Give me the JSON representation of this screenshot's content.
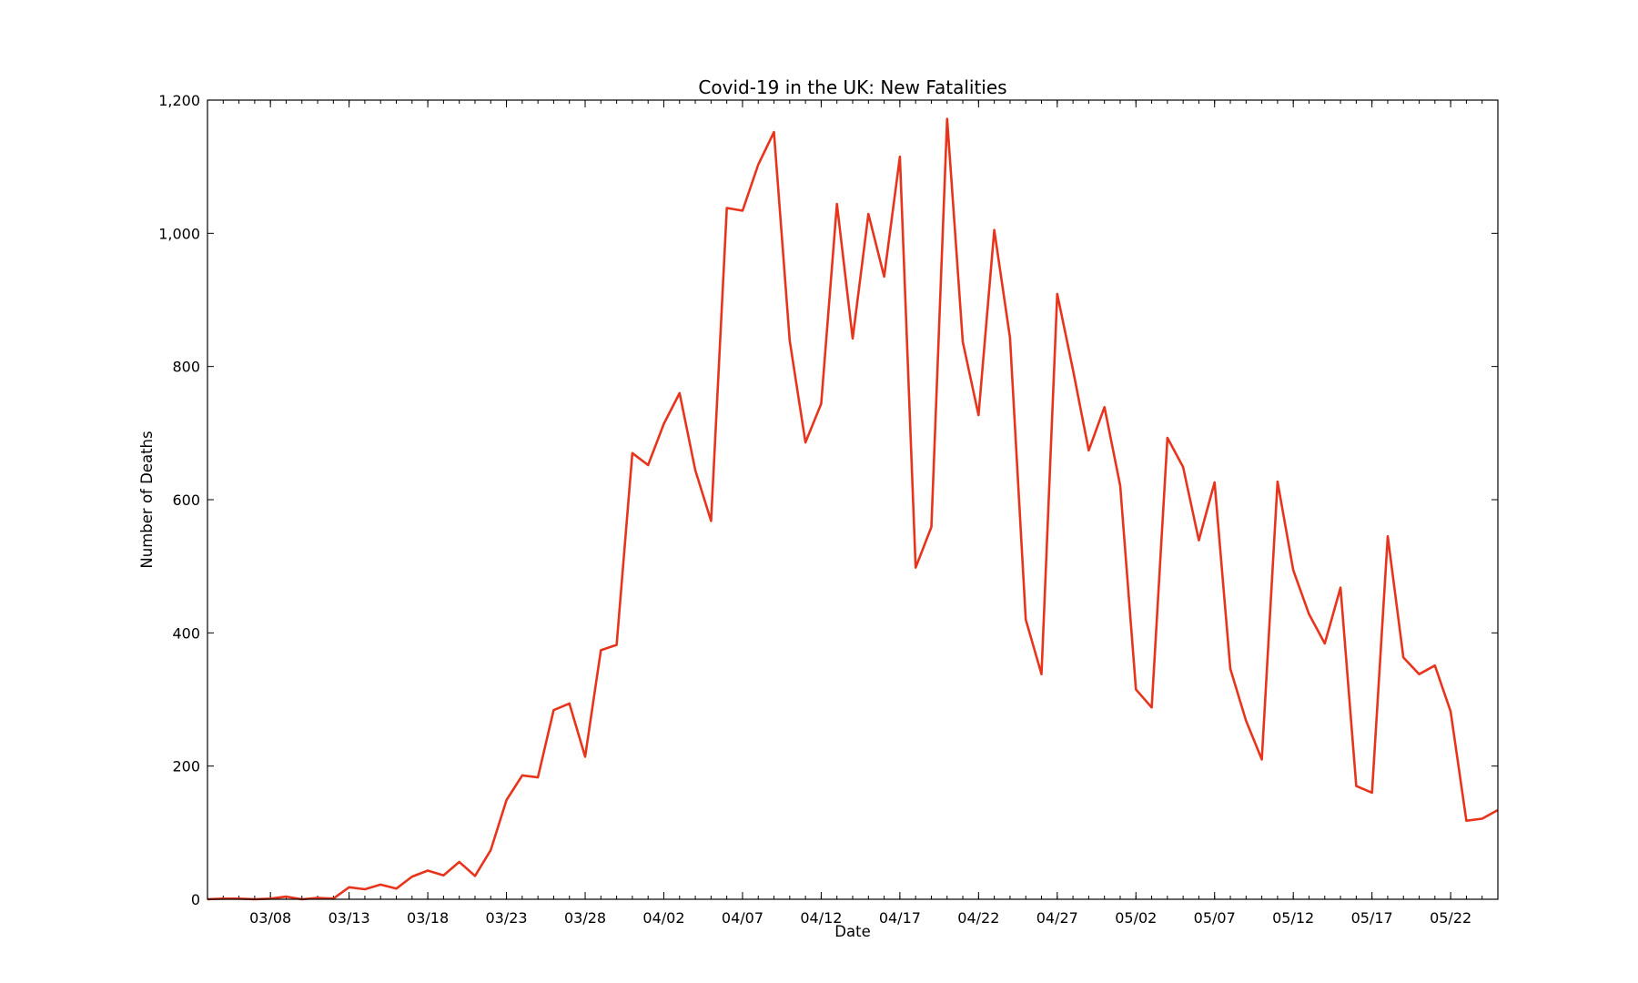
{
  "chart_data": {
    "type": "line",
    "title": "Covid-19 in the UK: New Fatalities",
    "xlabel": "Date",
    "ylabel": "Number of Deaths",
    "ylim": [
      0,
      1200
    ],
    "xlim": [
      "2020-03-04",
      "2020-05-25"
    ],
    "grid": false,
    "legend": "none",
    "yticks": [
      {
        "value": 0,
        "label": "0"
      },
      {
        "value": 200,
        "label": "200"
      },
      {
        "value": 400,
        "label": "400"
      },
      {
        "value": 600,
        "label": "600"
      },
      {
        "value": 800,
        "label": "800"
      },
      {
        "value": 1000,
        "label": "1,000"
      },
      {
        "value": 1200,
        "label": "1,200"
      }
    ],
    "xticks": [
      {
        "date": "2020-03-08",
        "label": "03/08"
      },
      {
        "date": "2020-03-13",
        "label": "03/13"
      },
      {
        "date": "2020-03-18",
        "label": "03/18"
      },
      {
        "date": "2020-03-23",
        "label": "03/23"
      },
      {
        "date": "2020-03-28",
        "label": "03/28"
      },
      {
        "date": "2020-04-02",
        "label": "04/02"
      },
      {
        "date": "2020-04-07",
        "label": "04/07"
      },
      {
        "date": "2020-04-12",
        "label": "04/12"
      },
      {
        "date": "2020-04-17",
        "label": "04/17"
      },
      {
        "date": "2020-04-22",
        "label": "04/22"
      },
      {
        "date": "2020-04-27",
        "label": "04/27"
      },
      {
        "date": "2020-05-02",
        "label": "05/02"
      },
      {
        "date": "2020-05-07",
        "label": "05/07"
      },
      {
        "date": "2020-05-12",
        "label": "05/12"
      },
      {
        "date": "2020-05-17",
        "label": "05/17"
      },
      {
        "date": "2020-05-22",
        "label": "05/22"
      }
    ],
    "series": [
      {
        "color": "#e8341c",
        "x": [
          "2020-03-04",
          "2020-03-05",
          "2020-03-06",
          "2020-03-07",
          "2020-03-08",
          "2020-03-09",
          "2020-03-10",
          "2020-03-11",
          "2020-03-12",
          "2020-03-13",
          "2020-03-14",
          "2020-03-15",
          "2020-03-16",
          "2020-03-17",
          "2020-03-18",
          "2020-03-19",
          "2020-03-20",
          "2020-03-21",
          "2020-03-22",
          "2020-03-23",
          "2020-03-24",
          "2020-03-25",
          "2020-03-26",
          "2020-03-27",
          "2020-03-28",
          "2020-03-29",
          "2020-03-30",
          "2020-03-31",
          "2020-04-01",
          "2020-04-02",
          "2020-04-03",
          "2020-04-04",
          "2020-04-05",
          "2020-04-06",
          "2020-04-07",
          "2020-04-08",
          "2020-04-09",
          "2020-04-10",
          "2020-04-11",
          "2020-04-12",
          "2020-04-13",
          "2020-04-14",
          "2020-04-15",
          "2020-04-16",
          "2020-04-17",
          "2020-04-18",
          "2020-04-19",
          "2020-04-20",
          "2020-04-21",
          "2020-04-22",
          "2020-04-23",
          "2020-04-24",
          "2020-04-25",
          "2020-04-26",
          "2020-04-27",
          "2020-04-28",
          "2020-04-29",
          "2020-04-30",
          "2020-05-01",
          "2020-05-02",
          "2020-05-03",
          "2020-05-04",
          "2020-05-05",
          "2020-05-06",
          "2020-05-07",
          "2020-05-08",
          "2020-05-09",
          "2020-05-10",
          "2020-05-11",
          "2020-05-12",
          "2020-05-13",
          "2020-05-14",
          "2020-05-15",
          "2020-05-16",
          "2020-05-17",
          "2020-05-18",
          "2020-05-19",
          "2020-05-20",
          "2020-05-21",
          "2020-05-22",
          "2020-05-23",
          "2020-05-24",
          "2020-05-25"
        ],
        "values": [
          0,
          1,
          1,
          0,
          1,
          4,
          0,
          2,
          1,
          18,
          15,
          22,
          16,
          34,
          43,
          36,
          56,
          35,
          74,
          149,
          186,
          183,
          284,
          294,
          214,
          374,
          382,
          670,
          652,
          714,
          760,
          644,
          568,
          1038,
          1034,
          1103,
          1152,
          839,
          686,
          744,
          1044,
          842,
          1029,
          935,
          1115,
          498,
          559,
          1172,
          837,
          727,
          1005,
          843,
          420,
          338,
          909,
          795,
          674,
          739,
          621,
          315,
          288,
          693,
          649,
          539,
          626,
          346,
          268,
          210,
          627,
          494,
          428,
          384,
          468,
          170,
          160,
          545,
          363,
          338,
          351,
          282,
          118,
          121,
          134
        ]
      }
    ]
  }
}
